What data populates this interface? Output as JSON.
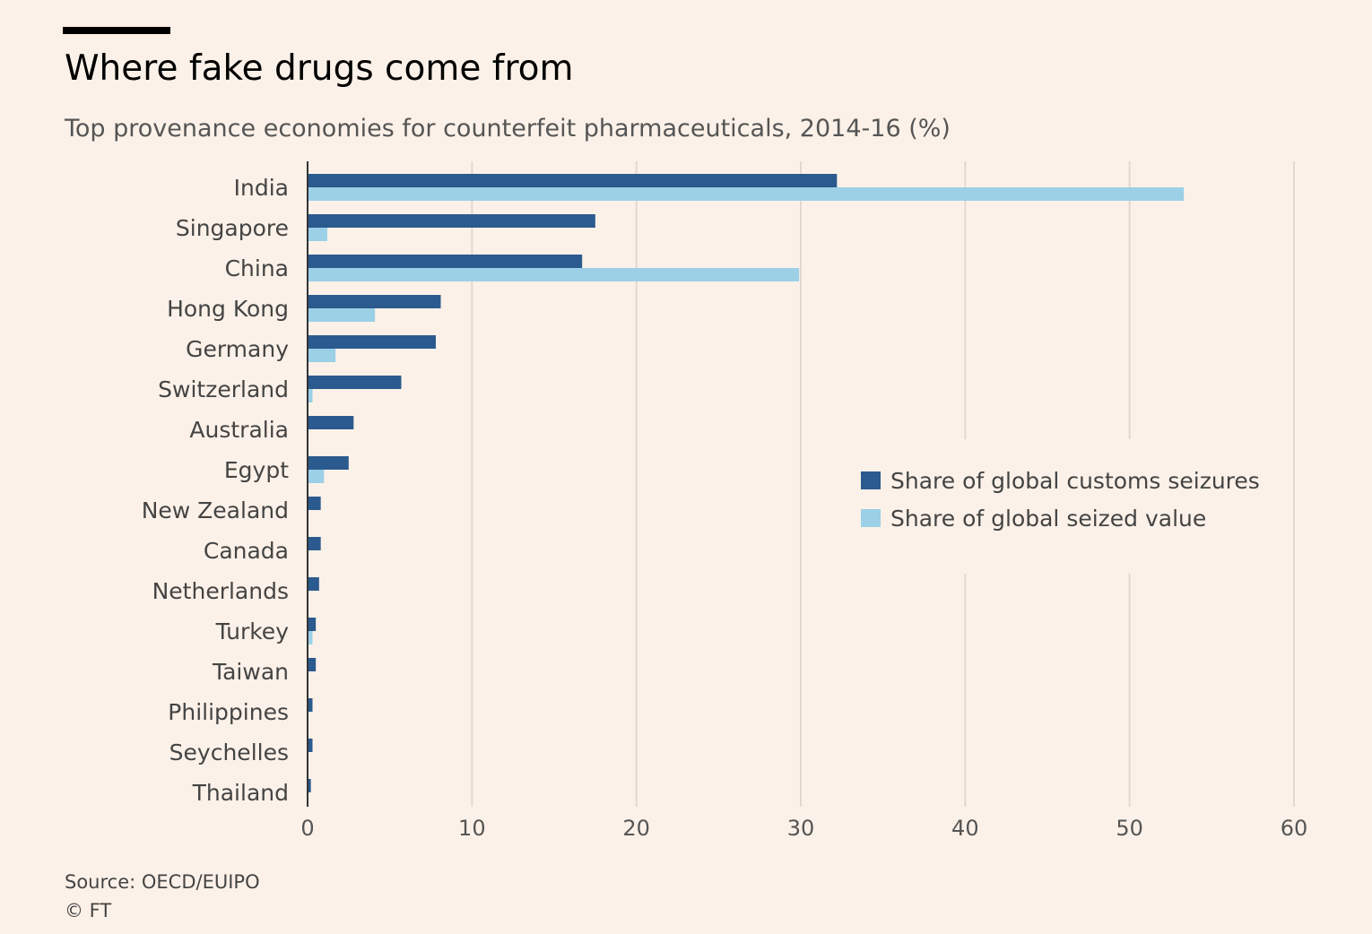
{
  "title": "Where fake drugs come from",
  "subtitle": "Top provenance economies for counterfeit pharmaceuticals, 2014-16 (%)",
  "source": "Source: OECD/EUIPO",
  "copyright": "© FT",
  "colors": {
    "background": "#fcf1e8",
    "seizures": "#2b5a8e",
    "value": "#9bd0e7",
    "grid": "#e0d9d2",
    "axis": "#333333"
  },
  "chart_data": {
    "type": "bar",
    "orientation": "horizontal",
    "title": "Where fake drugs come from",
    "subtitle": "Top provenance economies for counterfeit pharmaceuticals, 2014-16 (%)",
    "categories": [
      "India",
      "Singapore",
      "China",
      "Hong Kong",
      "Germany",
      "Switzerland",
      "Australia",
      "Egypt",
      "New Zealand",
      "Canada",
      "Netherlands",
      "Turkey",
      "Taiwan",
      "Philippines",
      "Seychelles",
      "Thailand"
    ],
    "series": [
      {
        "name": "Share of global customs seizures",
        "color": "#2b5a8e",
        "values": [
          32.2,
          17.5,
          16.7,
          8.1,
          7.8,
          5.7,
          2.8,
          2.5,
          0.8,
          0.8,
          0.7,
          0.5,
          0.5,
          0.3,
          0.3,
          0.2
        ]
      },
      {
        "name": "Share of global seized value",
        "color": "#9bd0e7",
        "values": [
          53.3,
          1.2,
          29.9,
          4.1,
          1.7,
          0.3,
          0.0,
          1.0,
          0.0,
          0.0,
          0.0,
          0.3,
          0.0,
          0.0,
          0.0,
          0.0
        ]
      }
    ],
    "xlim": [
      0,
      60
    ],
    "xticks": [
      0,
      10,
      20,
      30,
      40,
      50,
      60
    ],
    "grid": true,
    "legend_position": "right-middle"
  }
}
